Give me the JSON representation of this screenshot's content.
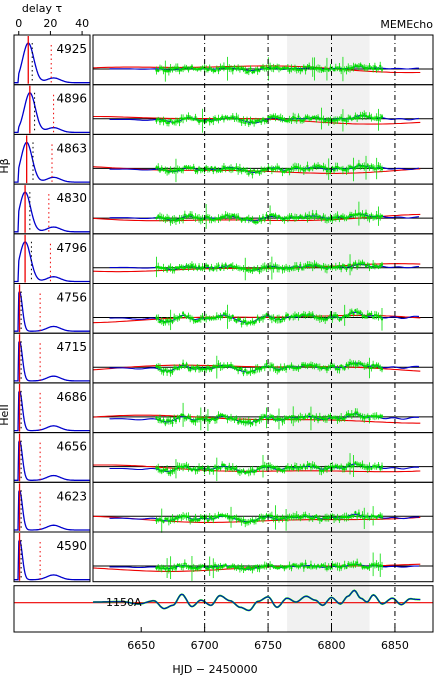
{
  "chart_data": {
    "type": "line",
    "top_axis": {
      "label": "delay τ",
      "ticks": [
        "0",
        "20",
        "40"
      ],
      "range": [
        -3,
        45
      ]
    },
    "top_right_label": "MEMEcho",
    "group_labels": {
      "hbeta": "Hβ",
      "heii": "HeII"
    },
    "bottom_axis": {
      "label": "HJD − 2450000",
      "ticks": [
        "6650",
        "6700",
        "6750",
        "6800",
        "6850"
      ],
      "range": [
        6612,
        6880
      ]
    },
    "shaded_range": [
      6765,
      6830
    ],
    "dashed_verticals": [
      6700,
      6750,
      6800,
      6850
    ],
    "panels": [
      {
        "label": "4925",
        "group": "hbeta",
        "peak_delay": 6,
        "delay_marker": 8.5,
        "offset_level": 0.0,
        "lag": 4,
        "amp": 0.45
      },
      {
        "label": "4896",
        "group": "hbeta",
        "peak_delay": 7,
        "delay_marker": 10,
        "offset_level": -0.1,
        "lag": 6,
        "amp": 0.9
      },
      {
        "label": "4863",
        "group": "hbeta",
        "peak_delay": 5,
        "delay_marker": 9,
        "offset_level": -0.1,
        "lag": 6,
        "amp": 0.85
      },
      {
        "label": "4830",
        "group": "hbeta",
        "peak_delay": 4,
        "delay_marker": 7,
        "offset_level": 0.0,
        "lag": 5,
        "amp": 0.8
      },
      {
        "label": "4796",
        "group": "hbeta",
        "peak_delay": 4,
        "delay_marker": 8,
        "offset_level": 0.0,
        "lag": 5,
        "amp": 0.7
      },
      {
        "label": "4756",
        "group": "heii",
        "peak_delay": 0.5,
        "delay_marker": 1.5,
        "offset_level": -0.1,
        "lag": 1,
        "amp": 1.3
      },
      {
        "label": "4715",
        "group": "heii",
        "peak_delay": 0.5,
        "delay_marker": 1.5,
        "offset_level": -0.1,
        "lag": 1,
        "amp": 1.1
      },
      {
        "label": "4686",
        "group": "heii",
        "peak_delay": 0.5,
        "delay_marker": 1.5,
        "offset_level": -0.2,
        "lag": 1,
        "amp": 1.1
      },
      {
        "label": "4656",
        "group": "heii",
        "peak_delay": 0.5,
        "delay_marker": 1.5,
        "offset_level": -0.2,
        "lag": 1,
        "amp": 1.0
      },
      {
        "label": "4623",
        "group": "heii",
        "peak_delay": 0.5,
        "delay_marker": 1.5,
        "offset_level": -0.2,
        "lag": 1,
        "amp": 0.9
      },
      {
        "label": "4590",
        "group": "heii",
        "peak_delay": 0.5,
        "delay_marker": 1.5,
        "offset_level": -0.1,
        "lag": 1,
        "amp": 0.6
      }
    ],
    "continuum_panel": {
      "label": "1150A"
    },
    "continuum_nodes": [
      [
        6612,
        0.05
      ],
      [
        6635,
        0.08
      ],
      [
        6648,
        -0.1
      ],
      [
        6660,
        0.15
      ],
      [
        6668,
        -0.45
      ],
      [
        6675,
        -0.2
      ],
      [
        6682,
        0.65
      ],
      [
        6690,
        -0.3
      ],
      [
        6697,
        0.2
      ],
      [
        6705,
        -0.2
      ],
      [
        6712,
        0.55
      ],
      [
        6720,
        0.15
      ],
      [
        6728,
        -0.35
      ],
      [
        6735,
        -0.6
      ],
      [
        6742,
        0.1
      ],
      [
        6750,
        0.45
      ],
      [
        6757,
        -0.35
      ],
      [
        6765,
        0.35
      ],
      [
        6772,
        0.05
      ],
      [
        6780,
        0.5
      ],
      [
        6787,
        0.2
      ],
      [
        6793,
        -0.2
      ],
      [
        6800,
        0.4
      ],
      [
        6807,
        -0.1
      ],
      [
        6813,
        0.5
      ],
      [
        6818,
        0.95
      ],
      [
        6823,
        0.35
      ],
      [
        6828,
        0.05
      ],
      [
        6833,
        0.6
      ],
      [
        6840,
        -0.1
      ],
      [
        6848,
        0.35
      ],
      [
        6855,
        -0.15
      ],
      [
        6862,
        0.3
      ],
      [
        6868,
        0.25
      ],
      [
        6880,
        0.1
      ]
    ],
    "series": [
      {
        "color": "#00dd00"
      },
      {
        "color": "#0000cc"
      },
      {
        "color": "#ee0000"
      }
    ],
    "grid": false
  }
}
